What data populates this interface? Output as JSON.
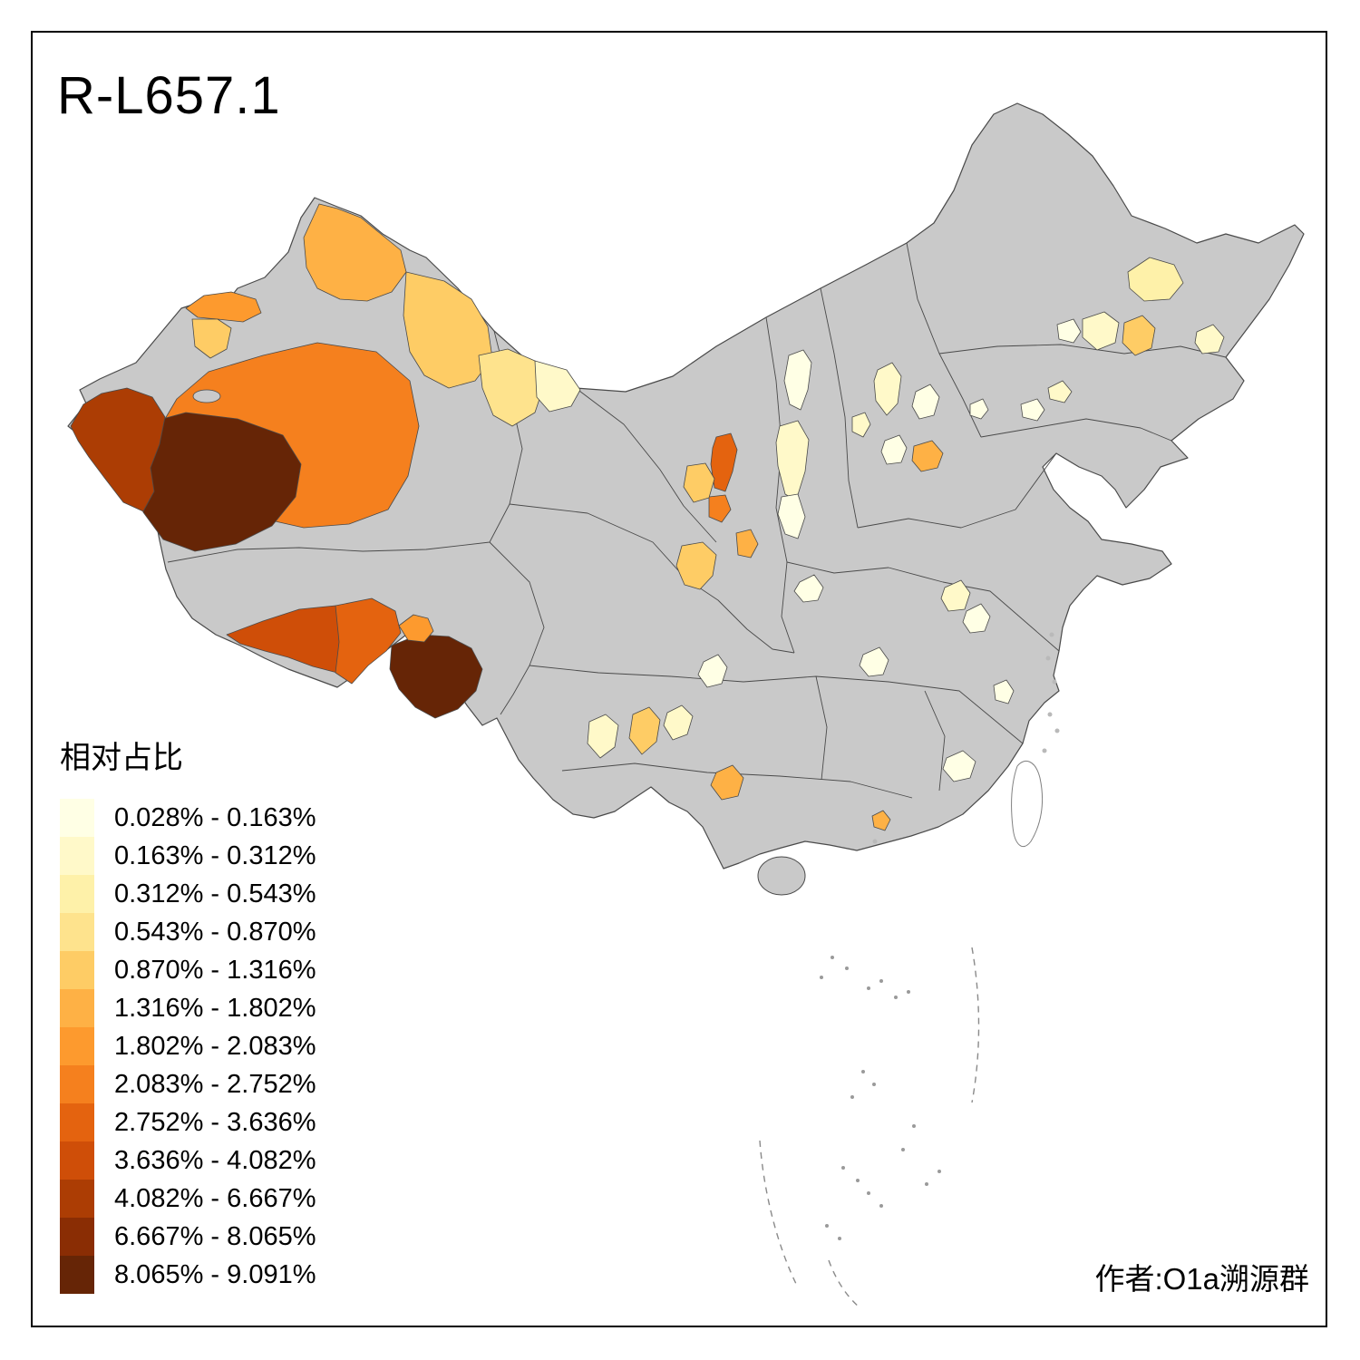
{
  "title": "R-L657.1",
  "credit": "作者:O1a溯源群",
  "legend": {
    "title": "相对占比",
    "items": [
      {
        "range": "0.028% - 0.163%",
        "color": "#FFFFE5"
      },
      {
        "range": "0.163% - 0.312%",
        "color": "#FFF9C9"
      },
      {
        "range": "0.312% - 0.543%",
        "color": "#FEF1A9"
      },
      {
        "range": "0.543% - 0.870%",
        "color": "#FEE38D"
      },
      {
        "range": "0.870% - 1.316%",
        "color": "#FECC65"
      },
      {
        "range": "1.316% - 1.802%",
        "color": "#FEB145"
      },
      {
        "range": "1.802% - 2.083%",
        "color": "#FD9A2E"
      },
      {
        "range": "2.083% - 2.752%",
        "color": "#F5801E"
      },
      {
        "range": "2.752% - 3.636%",
        "color": "#E4630F"
      },
      {
        "range": "3.636% - 4.082%",
        "color": "#CF4E08"
      },
      {
        "range": "4.082% - 6.667%",
        "color": "#AC3D04"
      },
      {
        "range": "6.667% - 8.065%",
        "color": "#8A2D04"
      },
      {
        "range": "8.065% - 9.091%",
        "color": "#662506"
      }
    ]
  },
  "map": {
    "colors": {
      "no_data": "#C9C9C9",
      "border": "#4A4A4A",
      "background": "#FFFFFF",
      "frame": "#000000"
    }
  }
}
